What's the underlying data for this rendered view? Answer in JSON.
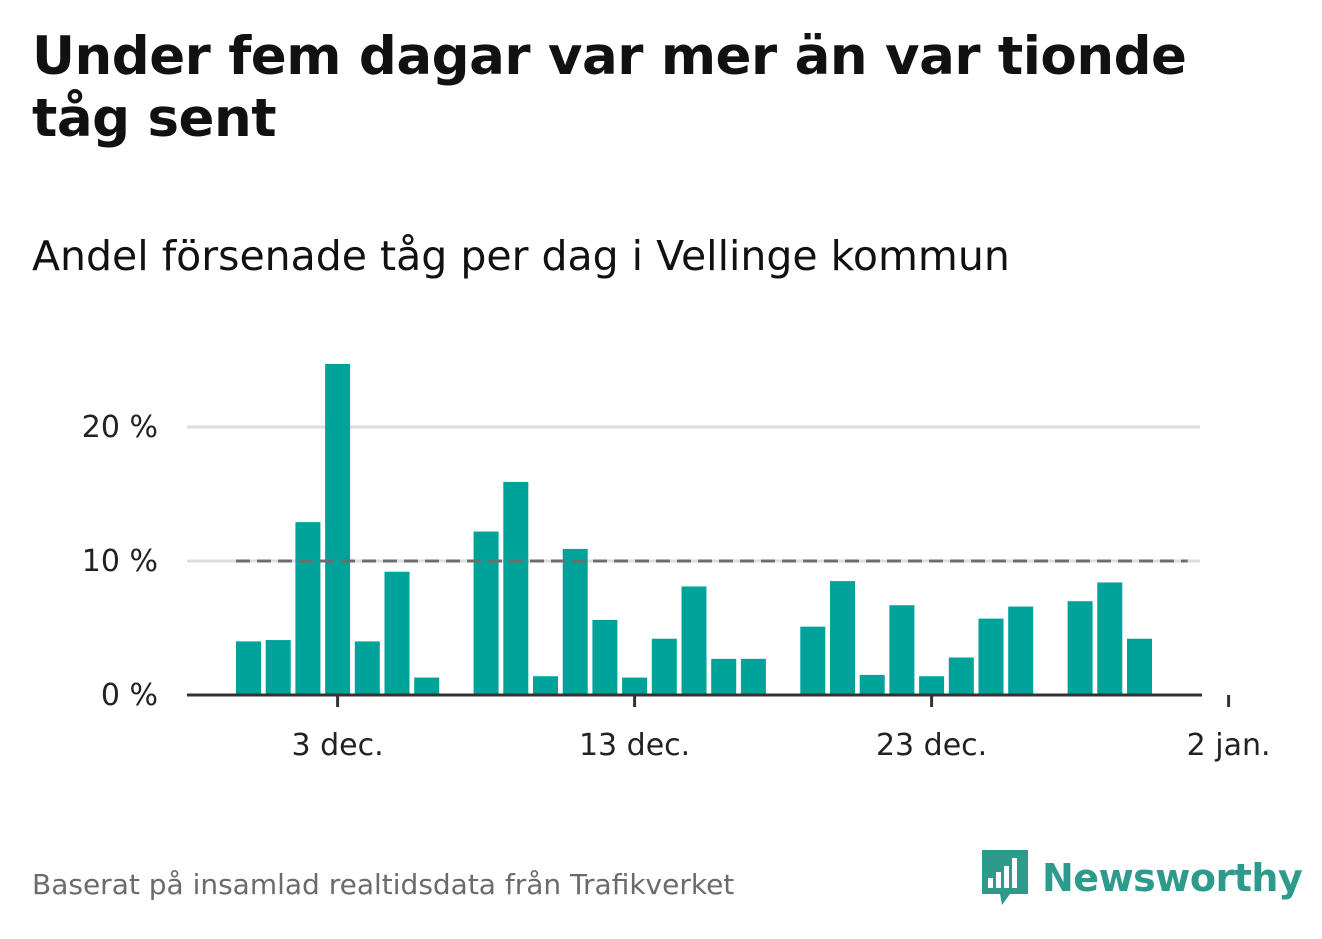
{
  "title": "Under fem dagar var mer än var tionde tåg sent",
  "subtitle": "Andel försenade tåg per dag i Vellinge kommun",
  "source": "Baserat på insamlad realtidsdata från Trafikverket",
  "brand": {
    "name": "Newsworthy",
    "icon": "bar-chart-speech-bubble-icon"
  },
  "colors": {
    "bar": "#00a39a",
    "reference_line": "#6d6d6d",
    "grid": "#dddddd",
    "axis": "#333333",
    "brand": "#2d9a8c"
  },
  "chart_data": {
    "type": "bar",
    "xlabel": "",
    "ylabel": "",
    "x_ticks": [
      "3 dec.",
      "13 dec.",
      "23 dec.",
      "2 jan."
    ],
    "y_ticks": [
      "0 %",
      "10 %",
      "20 %"
    ],
    "ylim": [
      0,
      25
    ],
    "reference_line": 10,
    "grid": true,
    "categories": [
      "2019-11-30",
      "2019-12-01",
      "2019-12-02",
      "2019-12-03",
      "2019-12-04",
      "2019-12-05",
      "2019-12-06",
      "2019-12-07",
      "2019-12-08",
      "2019-12-09",
      "2019-12-10",
      "2019-12-11",
      "2019-12-12",
      "2019-12-13",
      "2019-12-14",
      "2019-12-15",
      "2019-12-16",
      "2019-12-17",
      "2019-12-18",
      "2019-12-19",
      "2019-12-20",
      "2019-12-21",
      "2019-12-22",
      "2019-12-23",
      "2019-12-24",
      "2019-12-25",
      "2019-12-26",
      "2019-12-27",
      "2019-12-28",
      "2019-12-29",
      "2019-12-30",
      "2019-12-31",
      "2020-01-01"
    ],
    "values": [
      4.0,
      4.1,
      12.9,
      24.7,
      4.0,
      9.2,
      1.3,
      null,
      12.2,
      15.9,
      1.4,
      10.9,
      5.6,
      1.3,
      4.2,
      8.1,
      2.7,
      2.7,
      null,
      5.1,
      8.5,
      1.5,
      6.7,
      1.4,
      2.8,
      5.7,
      6.6,
      null,
      7.0,
      8.4,
      4.2,
      null,
      null
    ]
  }
}
